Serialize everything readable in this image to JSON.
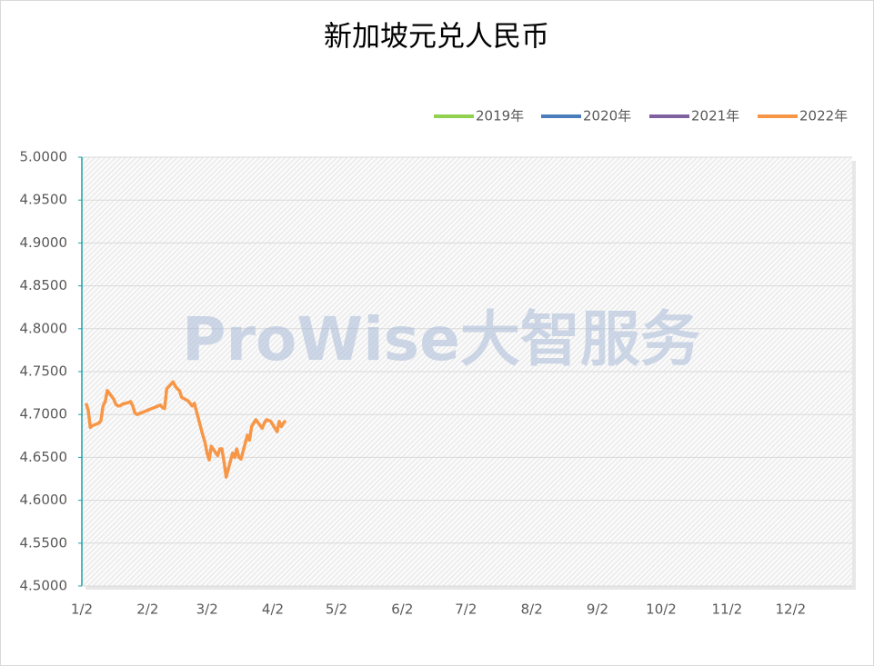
{
  "chart_data": {
    "type": "line",
    "title": "新加坡元兑人民币",
    "watermark": "ProWise大智服务",
    "x": [
      "1/4",
      "1/5",
      "1/6",
      "1/7",
      "1/10",
      "1/11",
      "1/12",
      "1/13",
      "1/14",
      "1/17",
      "1/18",
      "1/19",
      "1/20",
      "1/21",
      "1/24",
      "1/25",
      "1/26",
      "1/27",
      "1/28",
      "2/7",
      "2/8",
      "2/9",
      "2/10",
      "2/11",
      "2/14",
      "2/15",
      "2/16",
      "2/17",
      "2/18",
      "2/21",
      "2/22",
      "2/23",
      "2/24",
      "2/25",
      "2/28",
      "3/1",
      "3/2",
      "3/3",
      "3/4",
      "3/7",
      "3/8",
      "3/9",
      "3/10",
      "3/11",
      "3/14",
      "3/15",
      "3/16",
      "3/17",
      "3/18",
      "3/21",
      "3/22",
      "3/23",
      "3/24",
      "3/25",
      "3/28",
      "3/29",
      "3/30",
      "3/31",
      "4/1",
      "4/4",
      "4/5",
      "4/6",
      "4/7",
      "4/8"
    ],
    "series": [
      {
        "name": "2019年",
        "color": "#92d050",
        "values": [
          null,
          null,
          null,
          null,
          null,
          null,
          null,
          null,
          null,
          null,
          null,
          null,
          null,
          null,
          null,
          null,
          null,
          null,
          null,
          null,
          null,
          null,
          null,
          null,
          null,
          null,
          null,
          null,
          null,
          null,
          null,
          null,
          null,
          null,
          null,
          null,
          null,
          null,
          null,
          null,
          null,
          null,
          null,
          null,
          null,
          null,
          null,
          null,
          null,
          null,
          null,
          null,
          null,
          null,
          null,
          null,
          null,
          null,
          null,
          null,
          null,
          null,
          null,
          null
        ]
      },
      {
        "name": "2020年",
        "color": "#4a7ebb",
        "values": [
          null,
          null,
          null,
          null,
          null,
          null,
          null,
          null,
          null,
          null,
          null,
          null,
          null,
          null,
          null,
          null,
          null,
          null,
          null,
          null,
          null,
          null,
          null,
          null,
          null,
          null,
          null,
          null,
          null,
          null,
          null,
          null,
          null,
          null,
          null,
          null,
          null,
          null,
          null,
          null,
          null,
          null,
          null,
          null,
          null,
          null,
          null,
          null,
          null,
          null,
          null,
          null,
          null,
          null,
          null,
          null,
          null,
          null,
          null,
          null,
          null,
          null,
          null,
          null
        ]
      },
      {
        "name": "2021年",
        "color": "#7f60a0",
        "values": [
          null,
          null,
          null,
          null,
          null,
          null,
          null,
          null,
          null,
          null,
          null,
          null,
          null,
          null,
          null,
          null,
          null,
          null,
          null,
          null,
          null,
          null,
          null,
          null,
          null,
          null,
          null,
          null,
          null,
          null,
          null,
          null,
          null,
          null,
          null,
          null,
          null,
          null,
          null,
          null,
          null,
          null,
          null,
          null,
          null,
          null,
          null,
          null,
          null,
          null,
          null,
          null,
          null,
          null,
          null,
          null,
          null,
          null,
          null,
          null,
          null,
          null,
          null,
          null
        ]
      },
      {
        "name": "2022年",
        "color": "#f79646",
        "values": [
          4.713,
          4.705,
          4.685,
          4.687,
          4.69,
          4.693,
          4.71,
          4.715,
          4.728,
          4.718,
          4.712,
          4.71,
          4.71,
          4.712,
          4.714,
          4.715,
          4.71,
          4.702,
          4.7,
          4.71,
          4.711,
          4.708,
          4.707,
          4.73,
          4.738,
          4.733,
          4.73,
          4.728,
          4.72,
          4.716,
          4.713,
          4.71,
          4.713,
          4.704,
          4.676,
          4.668,
          4.655,
          4.647,
          4.663,
          4.652,
          4.66,
          4.66,
          4.645,
          4.627,
          4.655,
          4.65,
          4.66,
          4.65,
          4.648,
          4.676,
          4.67,
          4.686,
          4.69,
          4.694,
          4.684,
          4.69,
          4.694,
          4.693,
          4.692,
          4.68,
          4.692,
          4.686,
          4.69,
          4.693
        ]
      }
    ],
    "xlim": [
      "1/2",
      "12/31"
    ],
    "xticks": [
      "1/2",
      "2/2",
      "3/2",
      "4/2",
      "5/2",
      "6/2",
      "7/2",
      "8/2",
      "9/2",
      "10/2",
      "11/2",
      "12/2"
    ],
    "ylim": [
      4.5,
      5.0
    ],
    "yticks": [
      {
        "value": 4.5,
        "label": "4.5000"
      },
      {
        "value": 4.55,
        "label": "4.5500"
      },
      {
        "value": 4.6,
        "label": "4.6000"
      },
      {
        "value": 4.65,
        "label": "4.6500"
      },
      {
        "value": 4.7,
        "label": "4.7000"
      },
      {
        "value": 4.75,
        "label": "4.7500"
      },
      {
        "value": 4.8,
        "label": "4.8000"
      },
      {
        "value": 4.85,
        "label": "4.8500"
      },
      {
        "value": 4.9,
        "label": "4.9000"
      },
      {
        "value": 4.95,
        "label": "4.9500"
      },
      {
        "value": 5.0,
        "label": "5.0000"
      }
    ],
    "grid": true,
    "legend": "top-right"
  }
}
